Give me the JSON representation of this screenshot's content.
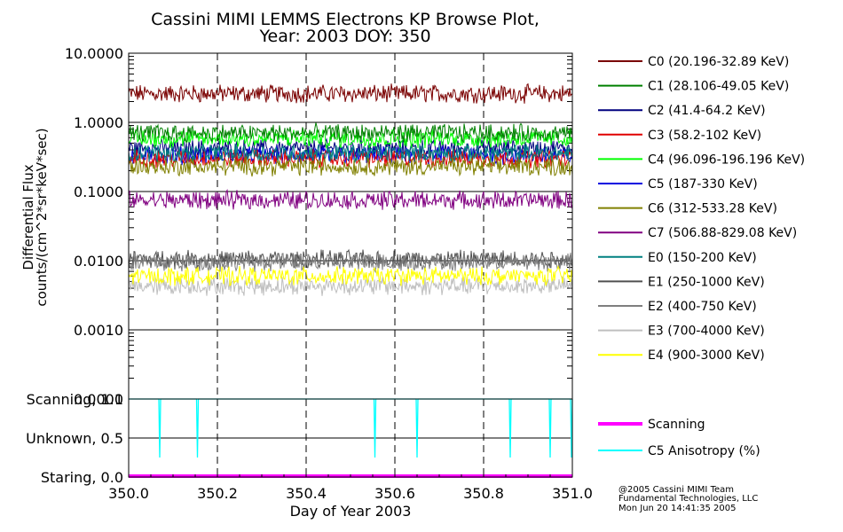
{
  "chart_data": [
    {
      "type": "line",
      "title": "Cassini MIMI LEMMS Electrons KP Browse Plot,",
      "subtitle": "Year: 2003 DOY: 350",
      "ylabel_line1": "Differential Flux",
      "ylabel_line2": "counts/(cm^2*sr*keV*sec)",
      "yscale": "log",
      "ylim": [
        0.0001,
        10.0
      ],
      "xlim": [
        350.0,
        351.0
      ],
      "yticks": [
        "10.0000",
        "1.0000",
        "0.1000",
        "0.0100",
        "0.0010",
        "0.0001"
      ],
      "ytick_values": [
        10,
        1,
        0.1,
        0.01,
        0.001,
        0.0001
      ],
      "vertical_dashed_lines": [
        350.2,
        350.4,
        350.6,
        350.8
      ],
      "legend_position": "right",
      "series": [
        {
          "name": "C0 (20.196-32.89 KeV)",
          "color": "#7a0000",
          "level": 2.6
        },
        {
          "name": "C1 (28.106-49.05 KeV)",
          "color": "#008000",
          "level": 0.7
        },
        {
          "name": "C2 (41.4-64.2 KeV)",
          "color": "#00007f",
          "level": 0.42
        },
        {
          "name": "C3 (58.2-102 KeV)",
          "color": "#e00000",
          "level": 0.3
        },
        {
          "name": "C4 (96.096-196.196 KeV)",
          "color": "#00ff00",
          "level": 0.58
        },
        {
          "name": "C5 (187-330 KeV)",
          "color": "#0000e0",
          "level": 0.33
        },
        {
          "name": "C6 (312-533.28 KeV)",
          "color": "#808000",
          "level": 0.23
        },
        {
          "name": "C7 (506.88-829.08 KeV)",
          "color": "#800080",
          "level": 0.075
        },
        {
          "name": "E0 (150-200 KeV)",
          "color": "#008080",
          "level": 0.36
        },
        {
          "name": "E1 (250-1000 KeV)",
          "color": "#505050",
          "level": 0.0105
        },
        {
          "name": "E2 (400-750 KeV)",
          "color": "#7f7f7f",
          "level": 0.0095
        },
        {
          "name": "E3 (700-4000 KeV)",
          "color": "#bfbfbf",
          "level": 0.0043
        },
        {
          "name": "E4 (900-3000 KeV)",
          "color": "#ffff00",
          "level": 0.006
        }
      ]
    },
    {
      "type": "line",
      "xlabel": "Day of Year 2003",
      "xticks": [
        "350.0",
        "350.2",
        "350.4",
        "350.6",
        "350.8",
        "351.0"
      ],
      "xtick_values": [
        350.0,
        350.2,
        350.4,
        350.6,
        350.8,
        351.0
      ],
      "ylim": [
        0.0,
        1.0
      ],
      "yticks": [
        "Staring, 0.0",
        "Unknown, 0.5",
        "Scanning, 1.0"
      ],
      "ytick_values": [
        0.0,
        0.5,
        1.0
      ],
      "legend_position": "right",
      "series": [
        {
          "name": "Scanning",
          "color": "#ff00ff",
          "constant": 0.0
        },
        {
          "name": "C5 Anisotropy (%)",
          "color": "#00ffff",
          "base": 1.0,
          "dip_value": 0.25,
          "dips_x": [
            350.07,
            350.155,
            350.555,
            350.65,
            350.86,
            350.95,
            350.998
          ]
        }
      ]
    }
  ],
  "footer": {
    "line1": "@2005 Cassini MIMI Team",
    "line2": "Fundamental Technologies, LLC",
    "line3": "Mon Jun 20 14:41:35 2005"
  }
}
